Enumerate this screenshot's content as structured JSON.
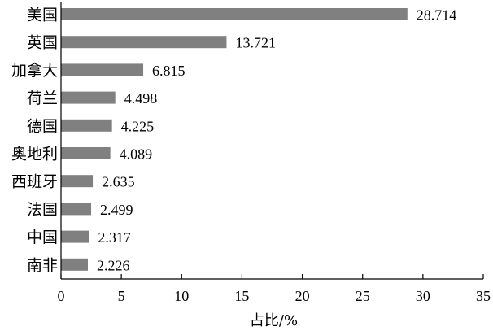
{
  "chart_data": {
    "type": "bar",
    "orientation": "horizontal",
    "categories": [
      "美国",
      "英国",
      "加拿大",
      "荷兰",
      "德国",
      "奥地利",
      "西班牙",
      "法国",
      "中国",
      "南非"
    ],
    "values": [
      28.714,
      13.721,
      6.815,
      4.498,
      4.225,
      4.089,
      2.635,
      2.499,
      2.317,
      2.226
    ],
    "data_labels": [
      "28.714",
      "13.721",
      "6.815",
      "4.498",
      "4.225",
      "4.089",
      "2.635",
      "2.499",
      "2.317",
      "2.226"
    ],
    "xlabel": "占比/%",
    "ylabel": "",
    "title": "",
    "xlim": [
      0,
      35
    ],
    "xticks": [
      "0",
      "5",
      "10",
      "15",
      "20",
      "25",
      "30",
      "35"
    ],
    "grid": false,
    "legend": "none",
    "bar_color": "#808080"
  }
}
